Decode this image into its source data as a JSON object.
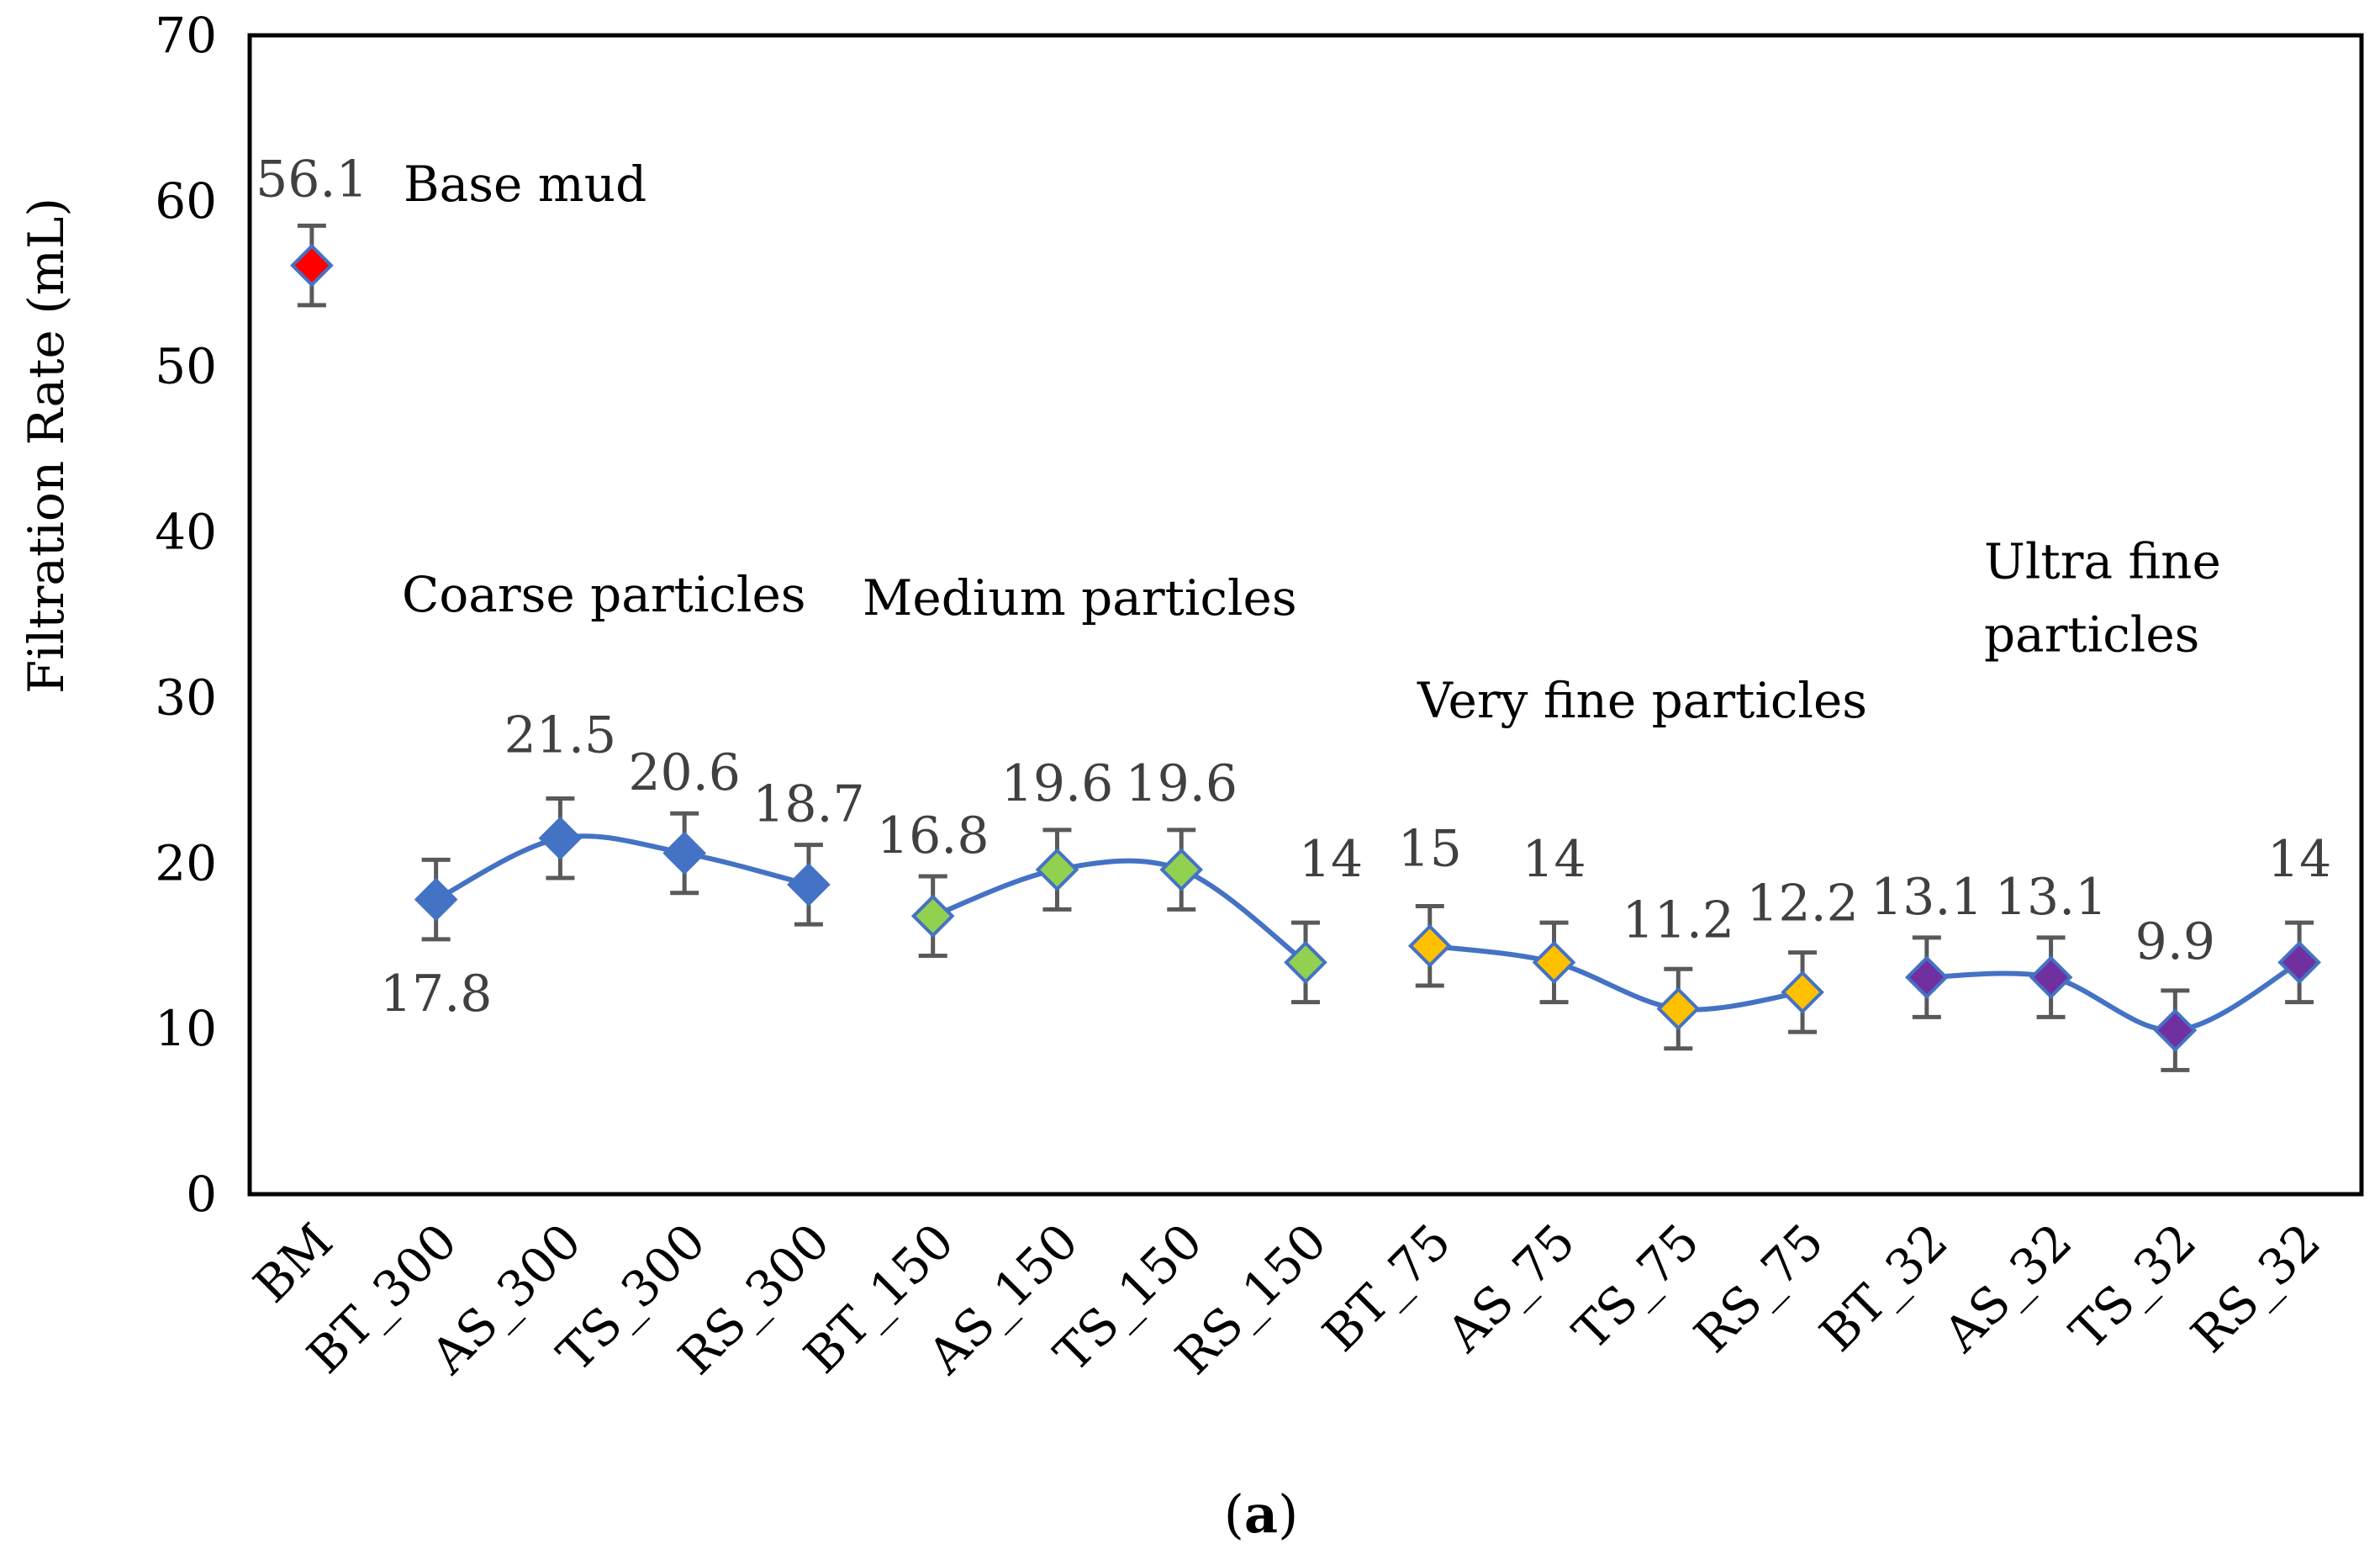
{
  "chart_data": {
    "type": "line",
    "ylabel": "Filtration Rate (mL)",
    "ylim": [
      0,
      70
    ],
    "yticks": [
      0,
      10,
      20,
      30,
      40,
      50,
      60,
      70
    ],
    "categories": [
      "BM",
      "BT_300",
      "AS_300",
      "TS_300",
      "RS_300",
      "BT_150",
      "AS_150",
      "TS_150",
      "RS_150",
      "BT_75",
      "AS_75",
      "TS_75",
      "RS_75",
      "BT_32",
      "AS_32",
      "TS_32",
      "RS_32"
    ],
    "error_bar": 2.4,
    "series": [
      {
        "color": "#ff0000",
        "marker_fill": "#ff0000",
        "connected": false,
        "points": [
          {
            "x": "BM",
            "y": 56.1,
            "label": "56.1"
          }
        ]
      },
      {
        "color": "#4472c4",
        "marker_fill": "#4472c4",
        "connected": true,
        "points": [
          {
            "x": "BT_300",
            "y": 17.8,
            "label": "17.8"
          },
          {
            "x": "AS_300",
            "y": 21.5,
            "label": "21.5"
          },
          {
            "x": "TS_300",
            "y": 20.6,
            "label": "20.6"
          },
          {
            "x": "RS_300",
            "y": 18.7,
            "label": "18.7"
          }
        ]
      },
      {
        "color": "#4472c4",
        "marker_fill": "#92d050",
        "connected": true,
        "points": [
          {
            "x": "BT_150",
            "y": 16.8,
            "label": "16.8"
          },
          {
            "x": "AS_150",
            "y": 19.6,
            "label": "19.6"
          },
          {
            "x": "TS_150",
            "y": 19.6,
            "label": "19.6"
          },
          {
            "x": "RS_150",
            "y": 14,
            "label": "14"
          }
        ]
      },
      {
        "color": "#4472c4",
        "marker_fill": "#ffc000",
        "connected": true,
        "points": [
          {
            "x": "BT_75",
            "y": 15,
            "label": "15"
          },
          {
            "x": "AS_75",
            "y": 14,
            "label": "14"
          },
          {
            "x": "TS_75",
            "y": 11.2,
            "label": "11.2"
          },
          {
            "x": "RS_75",
            "y": 12.2,
            "label": "12.2"
          }
        ]
      },
      {
        "color": "#4472c4",
        "marker_fill": "#7030a0",
        "connected": true,
        "points": [
          {
            "x": "BT_32",
            "y": 13.1,
            "label": "13.1"
          },
          {
            "x": "AS_32",
            "y": 13.1,
            "label": "13.1"
          },
          {
            "x": "TS_32",
            "y": 9.9,
            "label": "9.9"
          },
          {
            "x": "RS_32",
            "y": 14,
            "label": "14"
          }
        ]
      }
    ],
    "annotations": [
      {
        "text": "Base mud",
        "anchor": "AS_300",
        "y": 60.0
      },
      {
        "text": "Coarse particles",
        "anchor": "AS_300",
        "y": 35.2
      },
      {
        "text": "Medium particles",
        "anchor": "AS_150",
        "y": 35.0
      },
      {
        "text": "Very fine particles",
        "anchor": "AS_75",
        "y": 28.8
      },
      {
        "text": "Ultra fine",
        "anchor": "TS_32",
        "y": 37.2
      },
      {
        "text": "particles",
        "anchor": "TS_32",
        "y": 32.8
      }
    ],
    "caption": {
      "open": "(",
      "bold": "a",
      "close": ")"
    }
  }
}
